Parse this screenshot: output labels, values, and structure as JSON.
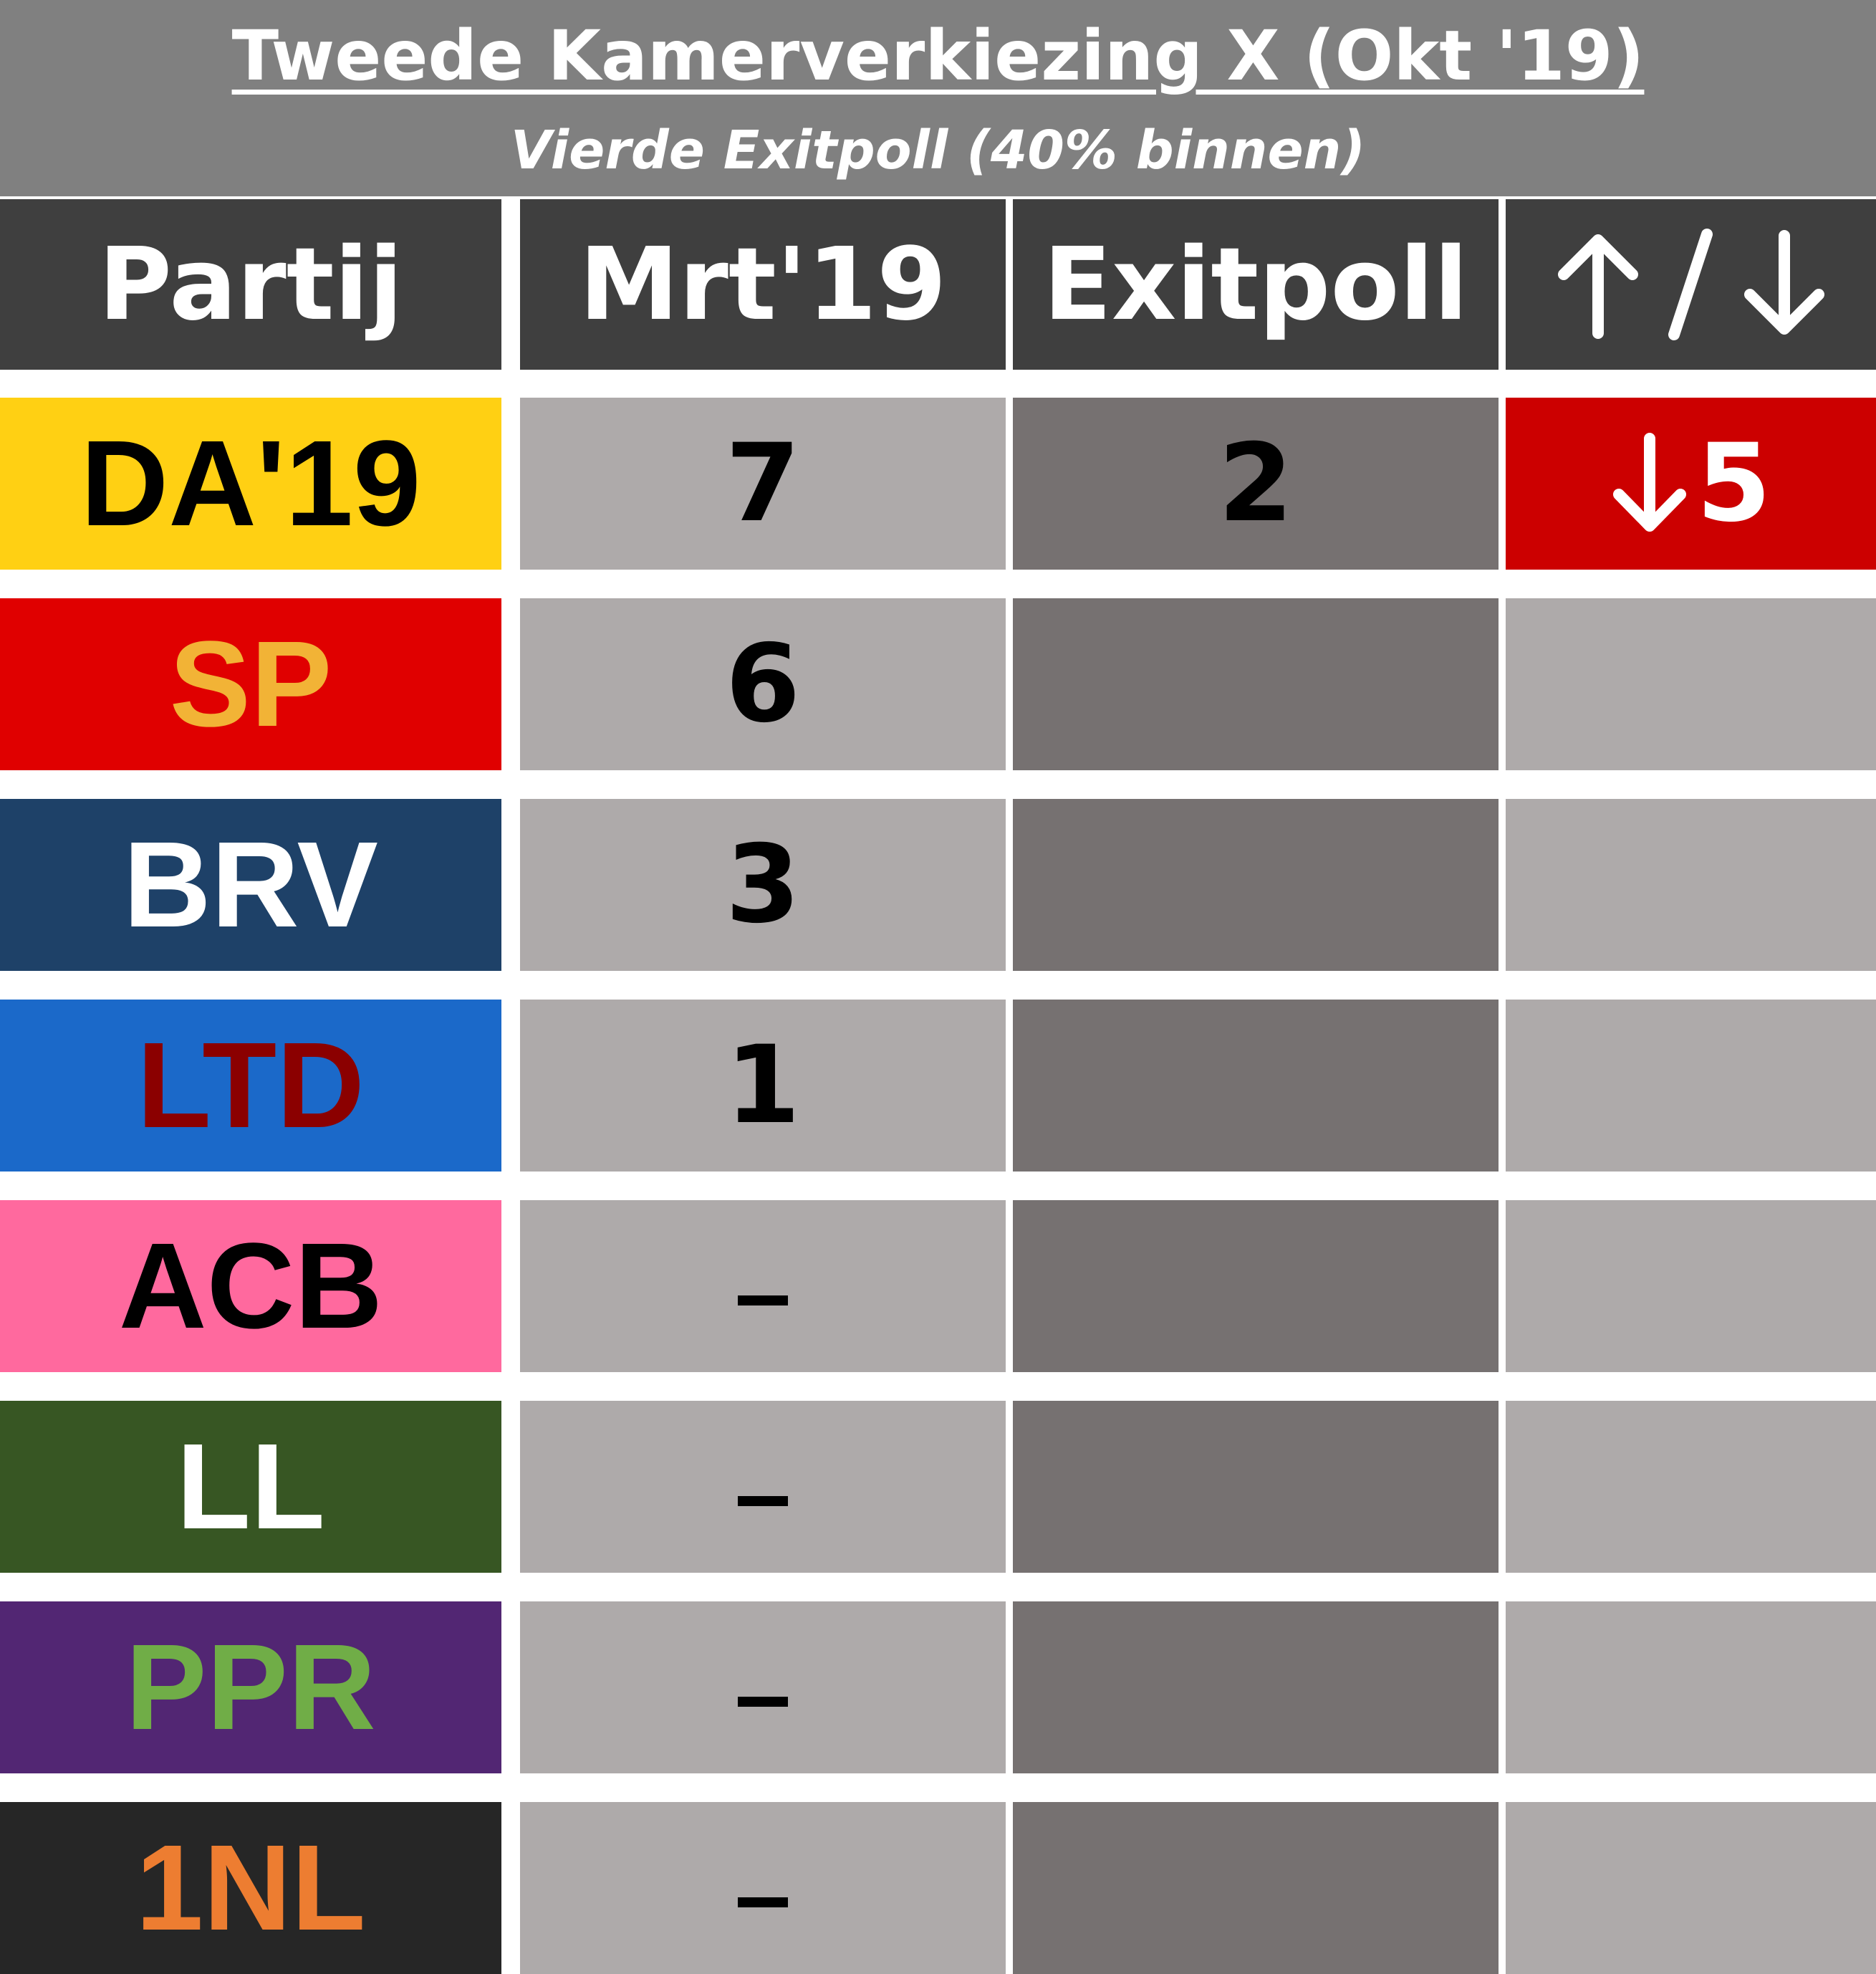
{
  "title": "Tweede Kamerverkiezing X (Okt '19)",
  "subtitle": "Vierde Exitpoll (40% binnen)",
  "headers": {
    "party": "Partij",
    "previous": "Mrt'19",
    "exitpoll": "Exitpoll",
    "change_icon": "up-slash-down-arrows-icon"
  },
  "colors": {
    "title_bg": "#808080",
    "header_bg": "#3f3f3f",
    "previous_col_bg": "#aeaaaa",
    "exitpoll_col_bg": "#767171",
    "change_col_bg": "#aeaaaa",
    "loss_bg": "#cc0000"
  },
  "rows": [
    {
      "party": "DA'19",
      "bg": "#ffd013",
      "fg": "#000000",
      "previous": "7",
      "exitpoll": "2",
      "change": "5",
      "change_direction": "down"
    },
    {
      "party": "SP",
      "bg": "#e00000",
      "fg": "#f2b336",
      "previous": "6",
      "exitpoll": "",
      "change": ""
    },
    {
      "party": "BRV",
      "bg": "#1e4168",
      "fg": "#ffffff",
      "previous": "3",
      "exitpoll": "",
      "change": ""
    },
    {
      "party": "LTD",
      "bg": "#1b69c9",
      "fg": "#8b0000",
      "previous": "1",
      "exitpoll": "",
      "change": ""
    },
    {
      "party": "ACB",
      "bg": "#ff699e",
      "fg": "#000000",
      "previous": "–",
      "exitpoll": "",
      "change": ""
    },
    {
      "party": "LL",
      "bg": "#375623",
      "fg": "#ffffff",
      "previous": "–",
      "exitpoll": "",
      "change": ""
    },
    {
      "party": "PPR",
      "bg": "#522673",
      "fg": "#70ad47",
      "previous": "–",
      "exitpoll": "",
      "change": ""
    },
    {
      "party": "1NL",
      "bg": "#262626",
      "fg": "#ed7d31",
      "previous": "–",
      "exitpoll": "",
      "change": ""
    }
  ]
}
